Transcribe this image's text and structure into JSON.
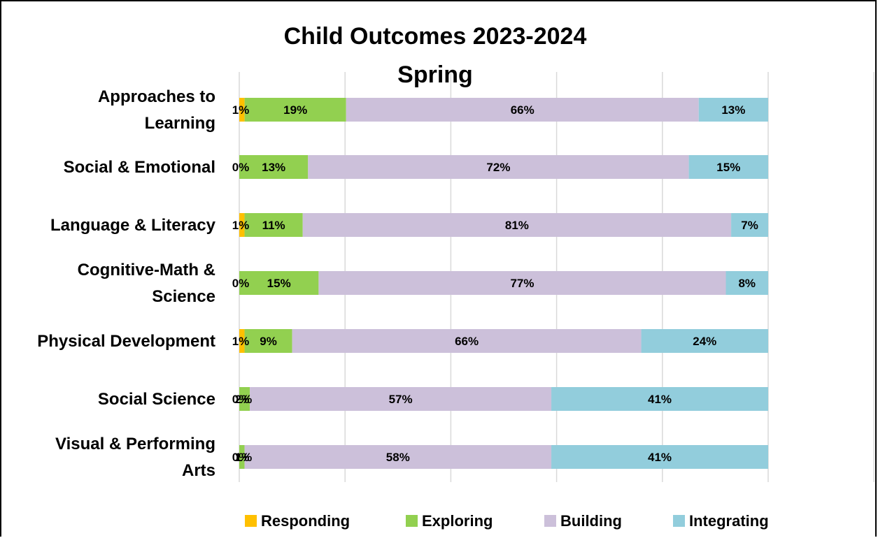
{
  "chart_data": {
    "type": "bar",
    "orientation": "horizontal",
    "stacked": "percent",
    "title": "Child Outcomes 2023-2024",
    "subtitle": "Spring",
    "categories": [
      "Approaches to Learning",
      "Social & Emotional",
      "Language & Literacy",
      "Cognitive-Math & Science",
      "Physical Development",
      "Social Science",
      "Visual & Performing Arts"
    ],
    "category_lines": [
      [
        "Approaches to",
        "Learning"
      ],
      [
        "Social & Emotional"
      ],
      [
        "Language & Literacy"
      ],
      [
        "Cognitive-Math &",
        "Science"
      ],
      [
        "Physical Development"
      ],
      [
        "Social Science"
      ],
      [
        "Visual & Performing",
        "Arts"
      ]
    ],
    "series": [
      {
        "name": "Responding",
        "color": "#FFC000",
        "values": [
          1,
          0,
          1,
          0,
          1,
          0,
          0
        ],
        "labels": [
          "1%",
          "0%",
          "1%",
          "0%",
          "1%",
          "0%",
          "0%"
        ]
      },
      {
        "name": "Exploring",
        "color": "#92D050",
        "values": [
          19,
          13,
          11,
          15,
          9,
          2,
          1
        ],
        "labels": [
          "19%",
          "13%",
          "11%",
          "15%",
          "9%",
          "2%",
          "1%"
        ]
      },
      {
        "name": "Building",
        "color": "#CCC0DA",
        "values": [
          66,
          72,
          81,
          77,
          66,
          57,
          58
        ],
        "labels": [
          "66%",
          "72%",
          "81%",
          "77%",
          "66%",
          "57%",
          "58%"
        ]
      },
      {
        "name": "Integrating",
        "color": "#92CDDC",
        "values": [
          13,
          15,
          7,
          8,
          24,
          41,
          41
        ],
        "labels": [
          "13%",
          "15%",
          "7%",
          "8%",
          "24%",
          "41%",
          "41%"
        ]
      }
    ],
    "xlim": [
      0,
      1.2
    ],
    "grid": true,
    "legend": "bottom"
  }
}
